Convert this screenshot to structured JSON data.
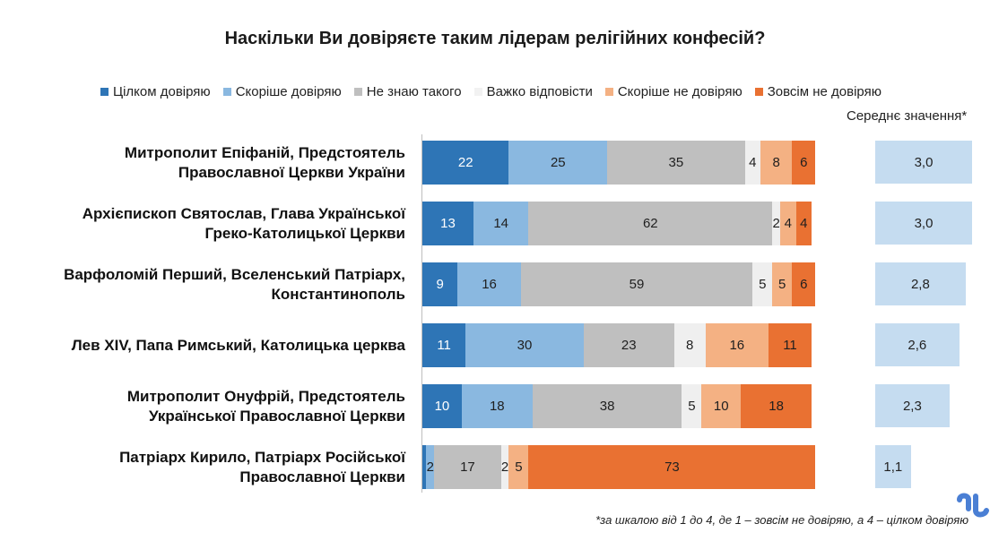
{
  "chart_data": {
    "type": "bar",
    "orientation": "horizontal",
    "stacked": true,
    "title": "Наскільки Ви довіряєте таким лідерам релігійних конфесій?",
    "categories": [
      [
        "Митрополит Епіфаній, Предстоятель",
        "Православної Церкви України"
      ],
      [
        "Архієпископ Святослав, Глава Української",
        "Греко-Католицької Церкви"
      ],
      [
        "Варфоломій Перший, Вселенський Патріарх,",
        "Константинополь"
      ],
      [
        "Лев XIV, Папа Римський, Католицька церква"
      ],
      [
        "Митрополит Онуфрій, Предстоятель",
        "Української Православної Церкви"
      ],
      [
        "Патріарх Кирило, Патріарх Російської",
        "Православної Церкви"
      ]
    ],
    "series": [
      {
        "name": "Цілком довіряю",
        "color": "#2e75b6",
        "text_color": "#ffffff",
        "values": [
          22,
          13,
          9,
          11,
          10,
          1
        ]
      },
      {
        "name": "Скоріше довіряю",
        "color": "#8ab8e0",
        "text_color": "#1f1f1f",
        "values": [
          25,
          14,
          16,
          30,
          18,
          2
        ]
      },
      {
        "name": "Не знаю такого",
        "color": "#bfbfbf",
        "text_color": "#1f1f1f",
        "values": [
          35,
          62,
          59,
          23,
          38,
          17
        ]
      },
      {
        "name": "Важко відповісти",
        "color": "#efefef",
        "text_color": "#1f1f1f",
        "values": [
          4,
          2,
          5,
          8,
          5,
          2
        ]
      },
      {
        "name": "Скоріше не довіряю",
        "color": "#f4b183",
        "text_color": "#1f1f1f",
        "values": [
          8,
          4,
          5,
          16,
          10,
          5
        ]
      },
      {
        "name": "Зовсім не довіряю",
        "color": "#e97132",
        "text_color": "#1f1f1f",
        "values": [
          6,
          4,
          6,
          11,
          18,
          73
        ]
      }
    ],
    "data_labels": [
      [
        "22",
        "25",
        "35",
        "4",
        "8",
        "6"
      ],
      [
        "13",
        "14",
        "62",
        "2",
        "4",
        "4"
      ],
      [
        "9",
        "16",
        "59",
        "5",
        "5",
        "6"
      ],
      [
        "11",
        "30",
        "23",
        "8",
        "16",
        "11"
      ],
      [
        "10",
        "18",
        "38",
        "5",
        "10",
        "18"
      ],
      [
        "",
        "2",
        "17",
        "2",
        "5",
        "73"
      ]
    ],
    "average": {
      "title": "Середнє значення*",
      "scale_max": 4,
      "values": [
        3.0,
        3.0,
        2.8,
        2.6,
        2.3,
        1.1
      ],
      "labels": [
        "3,0",
        "3,0",
        "2,8",
        "2,6",
        "2,3",
        "1,1"
      ],
      "color": "#c5dcf0"
    },
    "legend_position": "top",
    "footnote": "*за шкалою від 1 до 4, де 1 – зовсім не довіряю, а 4 – цілком довіряю"
  },
  "logo_color": "#4a7fd4"
}
